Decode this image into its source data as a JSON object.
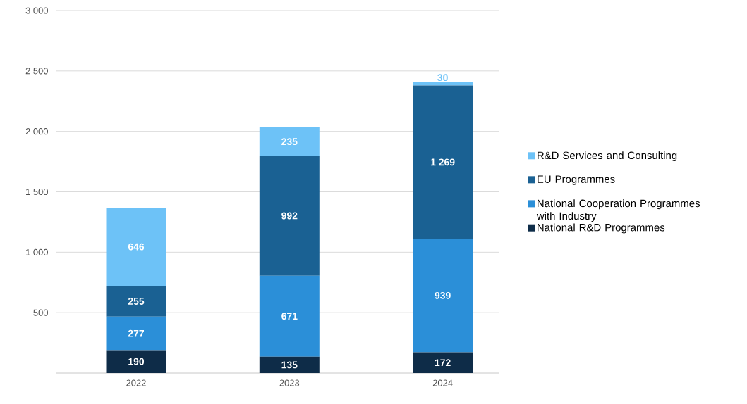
{
  "chart_data": {
    "type": "bar",
    "stacked": true,
    "categories": [
      "2022",
      "2023",
      "2024"
    ],
    "series": [
      {
        "name": "National R&D Programmes",
        "color": "#0e2c48",
        "values": [
          190,
          135,
          172
        ],
        "value_labels": [
          "190",
          "135",
          "172"
        ]
      },
      {
        "name": "National Cooperation Programmes with Industry",
        "color": "#2b8fd8",
        "values": [
          277,
          671,
          939
        ],
        "value_labels": [
          "277",
          "671",
          "939"
        ]
      },
      {
        "name": "EU Programmes",
        "color": "#1a6193",
        "values": [
          255,
          992,
          1269
        ],
        "value_labels": [
          "255",
          "992",
          "1 269"
        ]
      },
      {
        "name": "R&D Services and Consulting",
        "color": "#6dc2f7",
        "values": [
          646,
          235,
          30
        ],
        "value_labels": [
          "646",
          "235",
          "30"
        ]
      }
    ],
    "ylim": [
      0,
      3000
    ],
    "yticks": [
      {
        "value": 0,
        "label": null
      },
      500,
      {
        "value": 1000,
        "label": "1 000"
      },
      {
        "value": 1500,
        "label": "1 500"
      },
      {
        "value": 2000,
        "label": "2 000"
      },
      {
        "value": 2500,
        "label": "2 500"
      },
      {
        "value": 3000,
        "label": "3 000"
      }
    ],
    "grid": "y",
    "legend": "right"
  }
}
